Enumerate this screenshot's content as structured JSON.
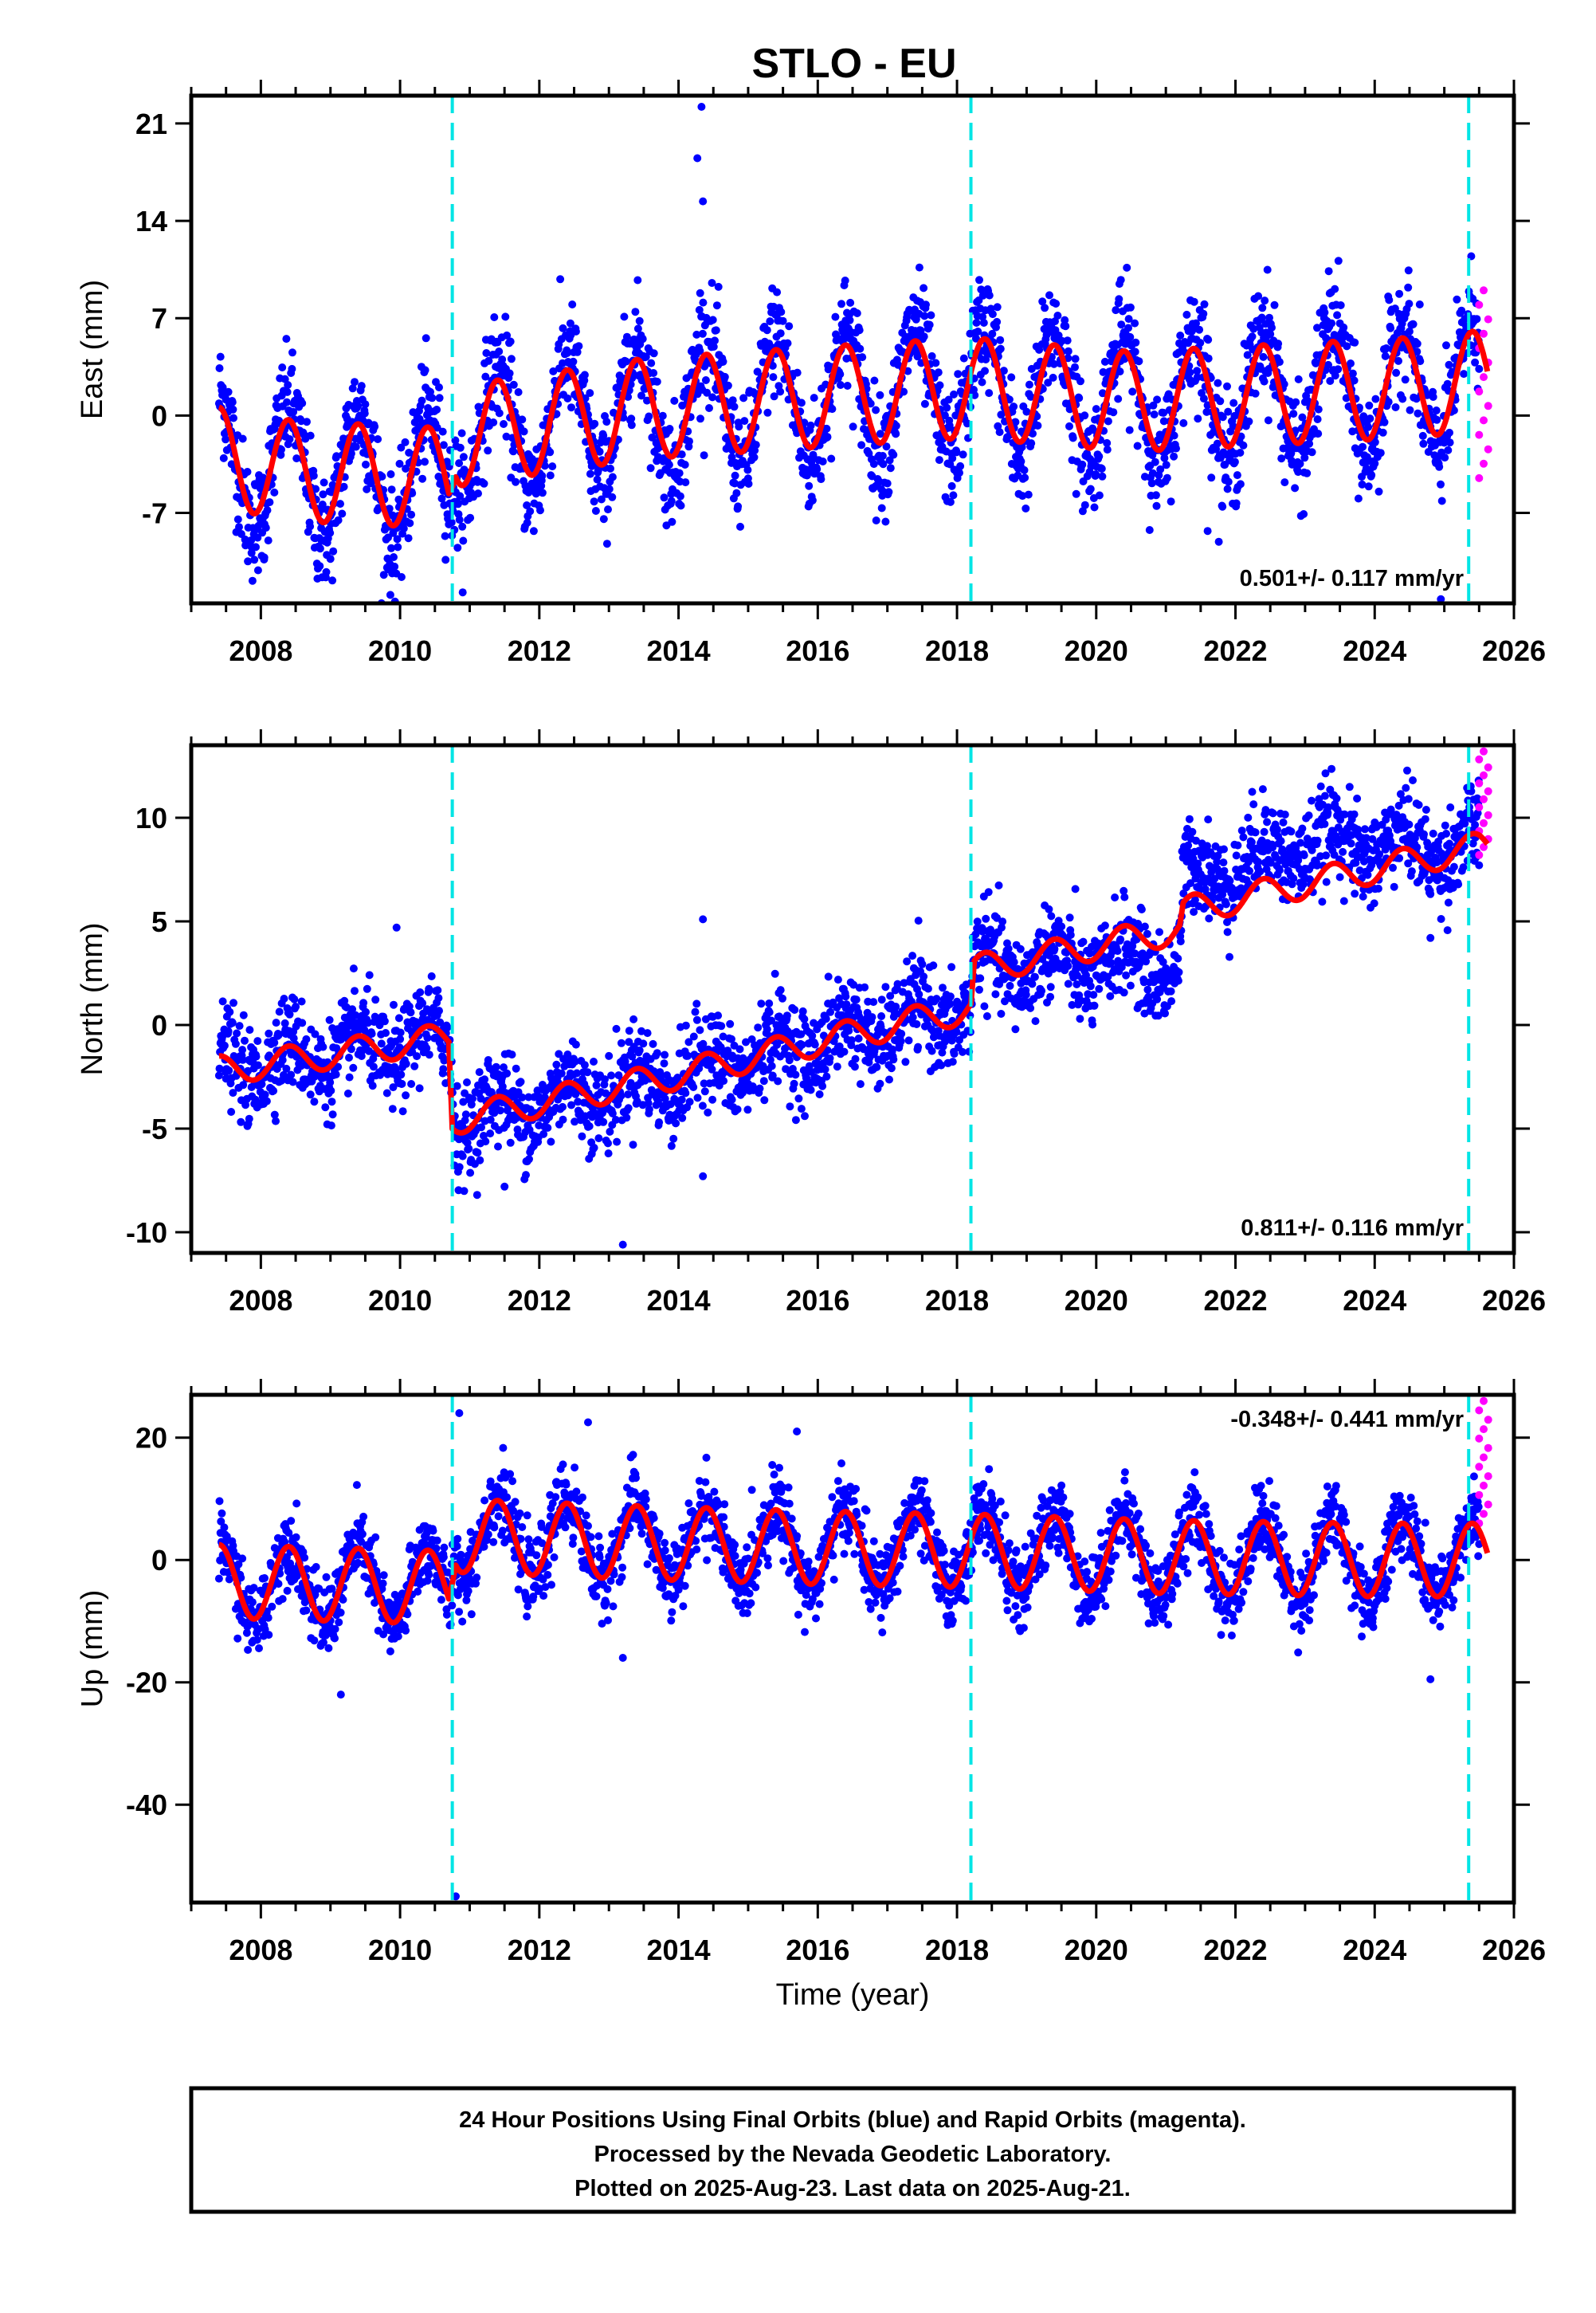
{
  "title": "STLO - EU",
  "footer": {
    "lines": [
      "24 Hour Positions Using Final Orbits (blue) and Rapid Orbits (magenta).",
      "Processed by the Nevada Geodetic Laboratory.",
      "Plotted on 2025-Aug-23. Last data on 2025-Aug-21."
    ]
  },
  "colors": {
    "final_orbits": "#0000ff",
    "rapid_orbits": "#ff00ff",
    "model_fit": "#ff0000",
    "event_lines": "#00e5e5",
    "frame": "#000000"
  },
  "chart_data": [
    {
      "type": "scatter",
      "ylabel": "East (mm)",
      "xlabel": "",
      "xlim": [
        2007,
        2026
      ],
      "ylim": [
        -13.5,
        23
      ],
      "xticks": [
        2008,
        2010,
        2012,
        2014,
        2016,
        2018,
        2020,
        2022,
        2024,
        2026
      ],
      "yticks": [
        -7,
        0,
        7,
        14,
        21
      ],
      "event_lines_x": [
        2010.75,
        2018.2,
        2025.35
      ],
      "rate_label": "0.501+/- 0.117 mm/yr",
      "rate_position": "bottom-right",
      "series": [
        {
          "name": "Final Orbits",
          "style": "points",
          "x_range": [
            2007.4,
            2025.5
          ],
          "trend": [
            [
              2007.4,
              -3.0
            ],
            [
              2008.5,
              -4.0
            ],
            [
              2010.7,
              -4.5
            ],
            [
              2010.8,
              -1.5
            ],
            [
              2013.5,
              0.5
            ],
            [
              2016.5,
              1.5
            ],
            [
              2018.2,
              2.0
            ],
            [
              2020.5,
              1.0
            ],
            [
              2022.5,
              1.5
            ],
            [
              2024.5,
              2.0
            ],
            [
              2025.5,
              2.5
            ]
          ],
          "seasonal_amplitude": 4.5,
          "scatter": 2.0,
          "outliers": [
            [
              2014.27,
              18.5
            ],
            [
              2014.33,
              22.2
            ],
            [
              2014.35,
              15.4
            ],
            [
              2014.31,
              8.8
            ],
            [
              2024.95,
              -13.2
            ],
            [
              2008.05,
              -10.2
            ],
            [
              2009.0,
              -10.3
            ],
            [
              2021.6,
              -8.3
            ]
          ]
        },
        {
          "name": "Rapid Orbits",
          "style": "points",
          "x_range": [
            2025.5,
            2025.63
          ],
          "values_range": [
            -4.5,
            9.0
          ]
        },
        {
          "name": "Model Fit",
          "style": "line",
          "trend": [
            [
              2007.4,
              -3.0
            ],
            [
              2008.5,
              -4.0
            ],
            [
              2010.7,
              -4.5
            ],
            [
              2010.8,
              -1.5
            ],
            [
              2013.5,
              0.5
            ],
            [
              2016.5,
              1.5
            ],
            [
              2018.2,
              2.0
            ],
            [
              2020.5,
              1.0
            ],
            [
              2022.5,
              1.5
            ],
            [
              2024.5,
              2.0
            ],
            [
              2025.5,
              2.5
            ]
          ],
          "seasonal_amplitude": 3.6
        }
      ]
    },
    {
      "type": "scatter",
      "ylabel": "North (mm)",
      "xlabel": "",
      "xlim": [
        2007,
        2026
      ],
      "ylim": [
        -11,
        13.5
      ],
      "xticks": [
        2008,
        2010,
        2012,
        2014,
        2016,
        2018,
        2020,
        2022,
        2024,
        2026
      ],
      "yticks": [
        -10,
        -5,
        0,
        5,
        10
      ],
      "event_lines_x": [
        2010.75,
        2018.2,
        2025.35
      ],
      "rate_label": "0.811+/- 0.116 mm/yr",
      "rate_position": "bottom-right",
      "series": [
        {
          "name": "Final Orbits",
          "style": "points",
          "x_range": [
            2007.4,
            2025.5
          ],
          "trend": [
            [
              2007.4,
              -2.0
            ],
            [
              2010.7,
              -0.7
            ],
            [
              2010.8,
              -4.5
            ],
            [
              2014.0,
              -2.5
            ],
            [
              2016.0,
              -0.8
            ],
            [
              2018.2,
              0.8
            ],
            [
              2018.25,
              2.8
            ],
            [
              2021.2,
              3.0
            ],
            [
              2021.25,
              6.8
            ],
            [
              2023.0,
              8.8
            ],
            [
              2025.5,
              8.5
            ]
          ],
          "seasonal_amplitude": 0.9,
          "scatter": 1.1,
          "outliers": [
            [
              2013.2,
              -10.6
            ],
            [
              2014.35,
              5.1
            ],
            [
              2014.35,
              -7.3
            ],
            [
              2024.8,
              4.2
            ],
            [
              2009.95,
              4.7
            ],
            [
              2011.5,
              -7.8
            ]
          ]
        },
        {
          "name": "Rapid Orbits",
          "style": "points",
          "x_range": [
            2025.5,
            2025.63
          ],
          "values_range": [
            8.2,
            13.2
          ]
        },
        {
          "name": "Model Fit",
          "style": "line",
          "trend": [
            [
              2007.4,
              -2.2
            ],
            [
              2010.7,
              -0.6
            ],
            [
              2010.75,
              -4.6
            ],
            [
              2014.0,
              -2.4
            ],
            [
              2016.0,
              -0.8
            ],
            [
              2018.2,
              0.8
            ],
            [
              2018.25,
              2.7
            ],
            [
              2021.2,
              4.6
            ],
            [
              2021.25,
              5.5
            ],
            [
              2023.0,
              6.8
            ],
            [
              2025.5,
              8.6
            ]
          ],
          "seasonal_amplitude": 0.7
        }
      ]
    },
    {
      "type": "scatter",
      "ylabel": "Up (mm)",
      "xlabel": "Time (year)",
      "xlim": [
        2007,
        2026
      ],
      "ylim": [
        -56,
        27
      ],
      "xticks": [
        2008,
        2010,
        2012,
        2014,
        2016,
        2018,
        2020,
        2022,
        2024,
        2026
      ],
      "yticks": [
        -40,
        -20,
        0,
        20
      ],
      "event_lines_x": [
        2010.75,
        2018.2,
        2025.35
      ],
      "rate_label": "-0.348+/- 0.441 mm/yr",
      "rate_position": "top-right",
      "series": [
        {
          "name": "Final Orbits",
          "style": "points",
          "x_range": [
            2007.4,
            2025.5
          ],
          "trend": [
            [
              2007.4,
              -3.5
            ],
            [
              2010.7,
              -4.5
            ],
            [
              2010.8,
              4.0
            ],
            [
              2013.0,
              3.0
            ],
            [
              2016.0,
              2.0
            ],
            [
              2018.2,
              1.5
            ],
            [
              2021.0,
              0.5
            ],
            [
              2024.0,
              0.0
            ],
            [
              2025.5,
              0.0
            ]
          ],
          "seasonal_amplitude": 6.5,
          "scatter": 3.0,
          "outliers": [
            [
              2010.8,
              -55.0
            ],
            [
              2010.85,
              24.0
            ],
            [
              2009.15,
              -22.0
            ],
            [
              2015.7,
              21.0
            ],
            [
              2012.7,
              22.5
            ],
            [
              2024.8,
              -19.5
            ],
            [
              2013.2,
              -16.0
            ]
          ]
        },
        {
          "name": "Rapid Orbits",
          "style": "points",
          "x_range": [
            2025.5,
            2025.63
          ],
          "values_range": [
            6.0,
            26.0
          ]
        },
        {
          "name": "Model Fit",
          "style": "line",
          "trend": [
            [
              2007.4,
              -3.5
            ],
            [
              2010.7,
              -4.5
            ],
            [
              2010.8,
              4.0
            ],
            [
              2013.0,
              3.0
            ],
            [
              2016.0,
              2.0
            ],
            [
              2018.2,
              1.5
            ],
            [
              2021.0,
              0.5
            ],
            [
              2024.0,
              0.0
            ],
            [
              2025.5,
              0.0
            ]
          ],
          "seasonal_amplitude": 6.0
        }
      ]
    }
  ]
}
